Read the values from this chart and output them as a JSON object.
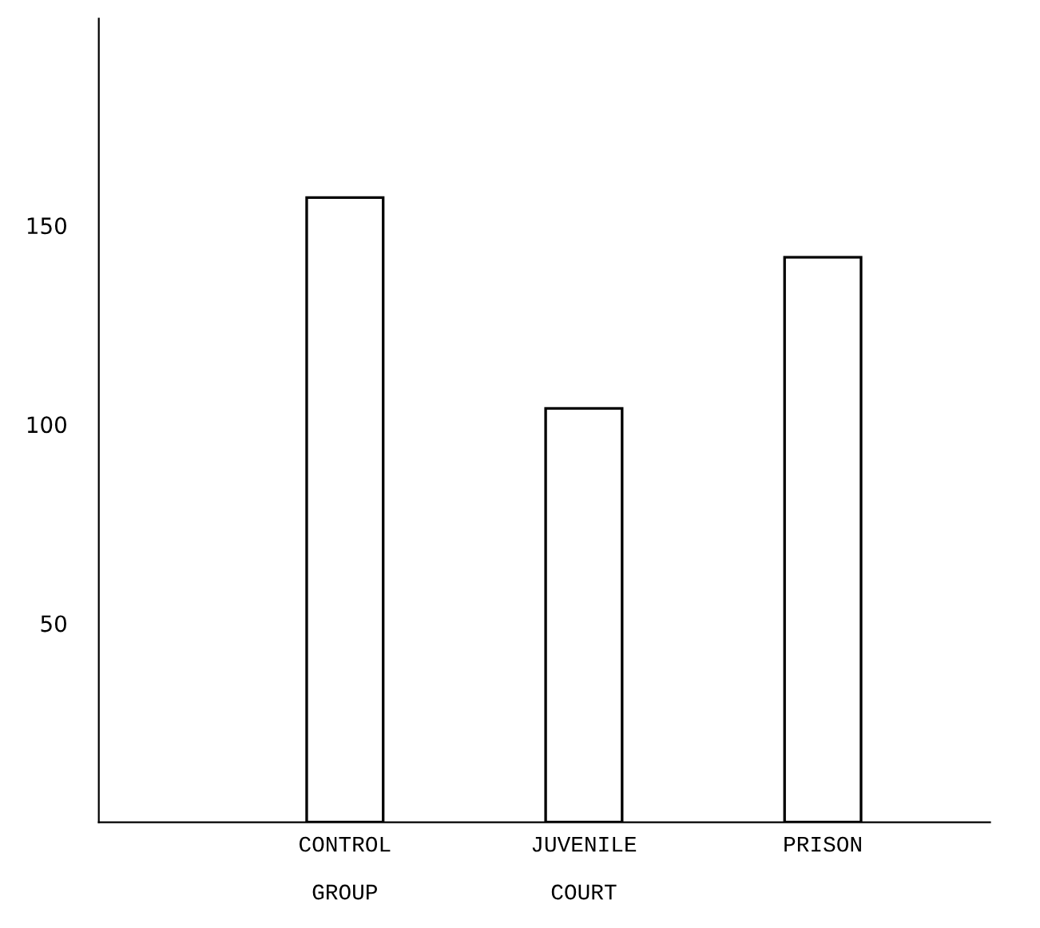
{
  "chart_data": {
    "type": "bar",
    "categories": [
      "CONTROL\n\nGROUP",
      "JUVENILE\n\nCOURT",
      "PRISON"
    ],
    "values": [
      157,
      104,
      142
    ],
    "color": "#ffffff",
    "ylim": [
      0,
      202
    ],
    "yticks": [
      50,
      100,
      150
    ],
    "grid": false,
    "legend": false
  }
}
